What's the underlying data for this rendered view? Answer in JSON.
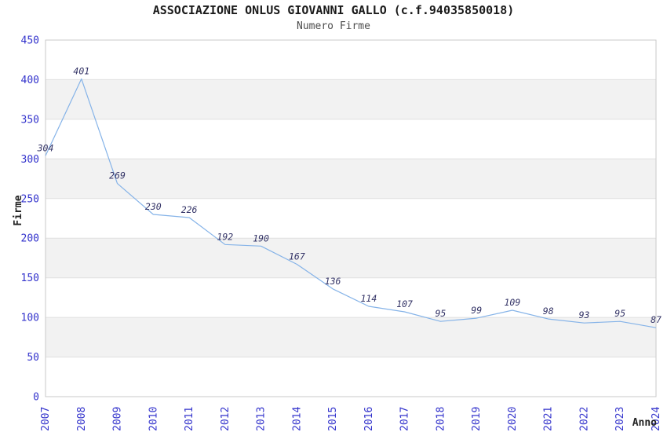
{
  "chart_data": {
    "type": "line",
    "title": "ASSOCIAZIONE ONLUS GIOVANNI GALLO (c.f.94035850018)",
    "subtitle": "Numero Firme",
    "xlabel": "Anno",
    "ylabel": "Firme",
    "categories": [
      "2007",
      "2008",
      "2009",
      "2010",
      "2011",
      "2012",
      "2013",
      "2014",
      "2015",
      "2016",
      "2017",
      "2018",
      "2019",
      "2020",
      "2021",
      "2022",
      "2023",
      "2024"
    ],
    "series": [
      {
        "name": "Numero Firme",
        "values": [
          304,
          401,
          269,
          230,
          226,
          192,
          190,
          167,
          136,
          114,
          107,
          95,
          99,
          109,
          98,
          93,
          95,
          87
        ]
      }
    ],
    "ylim": [
      0,
      450
    ],
    "ytick_step": 50,
    "yticks": [
      450,
      400,
      350,
      300,
      250,
      200,
      150,
      100,
      50,
      0
    ],
    "grid": "horizontal",
    "background_bands": "alternating-gray",
    "legend": "none",
    "value_labels": "above-points",
    "x_tick_rotation": -90,
    "colors": {
      "line": "#85b3e8",
      "tick_label": "#3333cc",
      "value_label": "#333366",
      "band": "#f2f2f2",
      "gridline": "#e0e0e0",
      "border": "#c9c9c9",
      "title": "#1a1a1a",
      "subtitle": "#4d4d4d",
      "axis_title": "#222222",
      "background": "#ffffff"
    }
  }
}
